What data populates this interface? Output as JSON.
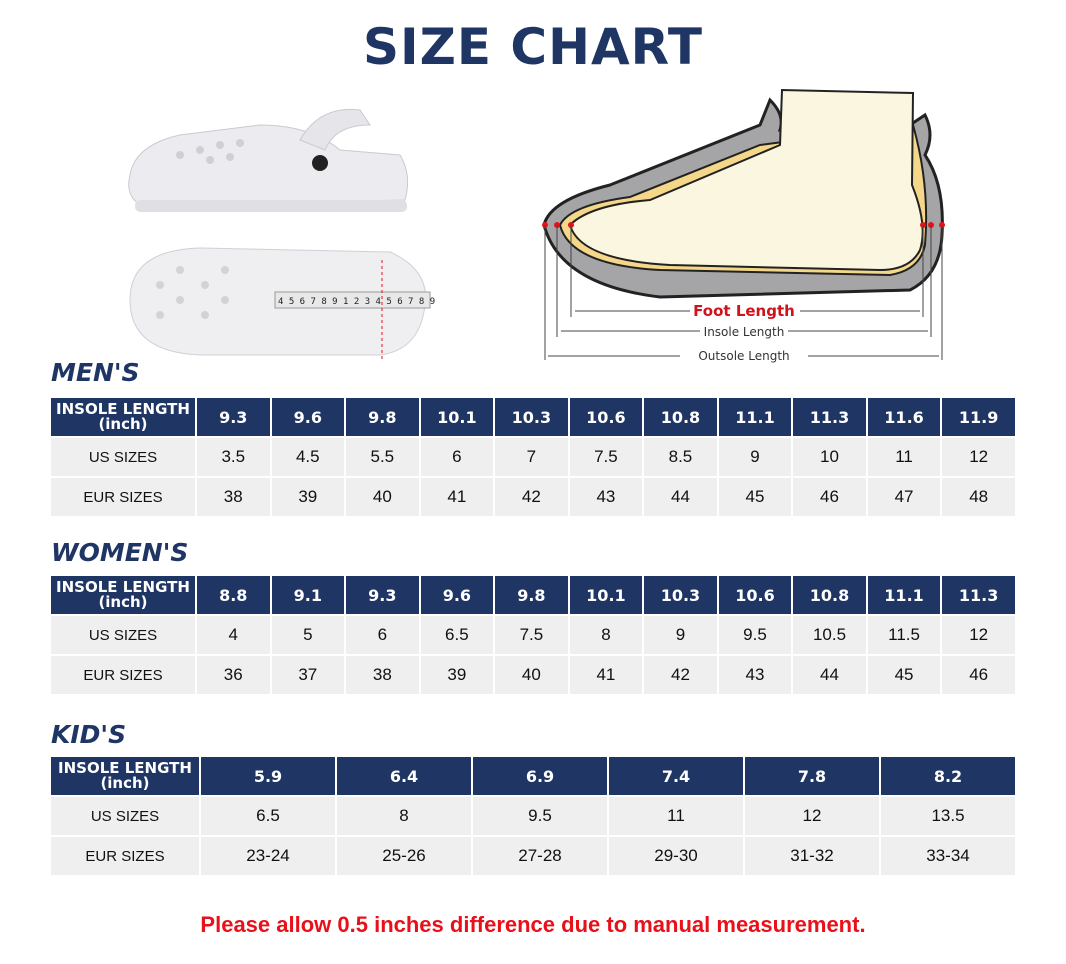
{
  "title": "SIZE CHART",
  "diagram": {
    "foot_length": "Foot Length",
    "insole_length": "Insole Length",
    "outsole_length": "Outsole Length",
    "tape_numbers": "4 5 6 7 8 9 1 2 3 4 5 6 7 8 9"
  },
  "colors": {
    "navy": "#1f3564",
    "cell": "#efefef",
    "red": "#e8111a"
  },
  "row_labels": {
    "insole": "INSOLE LENGTH",
    "insole_unit": "(inch)",
    "us": "US SIZES",
    "eur": "EUR SIZES"
  },
  "men": {
    "label": "MEN'S",
    "insole": [
      "9.3",
      "9.6",
      "9.8",
      "10.1",
      "10.3",
      "10.6",
      "10.8",
      "11.1",
      "11.3",
      "11.6",
      "11.9"
    ],
    "us": [
      "3.5",
      "4.5",
      "5.5",
      "6",
      "7",
      "7.5",
      "8.5",
      "9",
      "10",
      "11",
      "12"
    ],
    "eur": [
      "38",
      "39",
      "40",
      "41",
      "42",
      "43",
      "44",
      "45",
      "46",
      "47",
      "48"
    ]
  },
  "women": {
    "label": "WOMEN'S",
    "insole": [
      "8.8",
      "9.1",
      "9.3",
      "9.6",
      "9.8",
      "10.1",
      "10.3",
      "10.6",
      "10.8",
      "11.1",
      "11.3"
    ],
    "us": [
      "4",
      "5",
      "6",
      "6.5",
      "7.5",
      "8",
      "9",
      "9.5",
      "10.5",
      "11.5",
      "12"
    ],
    "eur": [
      "36",
      "37",
      "38",
      "39",
      "40",
      "41",
      "42",
      "43",
      "44",
      "45",
      "46"
    ]
  },
  "kids": {
    "label": "KID'S",
    "insole": [
      "5.9",
      "6.4",
      "6.9",
      "7.4",
      "7.8",
      "8.2"
    ],
    "us": [
      "6.5",
      "8",
      "9.5",
      "11",
      "12",
      "13.5"
    ],
    "eur": [
      "23-24",
      "25-26",
      "27-28",
      "29-30",
      "31-32",
      "33-34"
    ]
  },
  "note": "Please allow 0.5 inches difference due to manual measurement."
}
